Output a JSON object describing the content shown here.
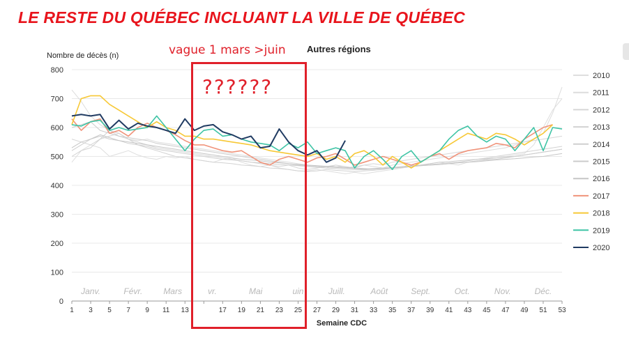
{
  "headline": "LE RESTE DU QUÉBEC INCLUANT LA VILLE DE QUÉBEC",
  "annotation": "vague 1 mars >juin",
  "question_marks": "??????",
  "chart_data": {
    "type": "line",
    "title": "Autres régions",
    "ylabel": "Nombre de décès (n)",
    "xlabel": "Semaine CDC",
    "ylim": [
      0,
      800
    ],
    "xlim": [
      1,
      53
    ],
    "yticks": [
      0,
      100,
      200,
      300,
      400,
      500,
      600,
      700,
      800
    ],
    "xticks": [
      1,
      3,
      5,
      7,
      9,
      11,
      13,
      15,
      17,
      19,
      21,
      23,
      25,
      27,
      29,
      31,
      33,
      35,
      37,
      39,
      41,
      43,
      45,
      47,
      49,
      51,
      53
    ],
    "xtick_labels": [
      "1",
      "3",
      "5",
      "7",
      "9",
      "11",
      "13",
      "",
      "17",
      "19",
      "21",
      "23",
      "25",
      "27",
      "29",
      "31",
      "33",
      "35",
      "37",
      "39",
      "41",
      "43",
      "45",
      "47",
      "49",
      "51",
      "53"
    ],
    "months": [
      {
        "label": "Janv.",
        "week": 3
      },
      {
        "label": "Févr.",
        "week": 7.5
      },
      {
        "label": "Mars",
        "week": 11.7
      },
      {
        "label": "vr.",
        "week": 15.9
      },
      {
        "label": "Mai",
        "week": 20.5
      },
      {
        "label": "uin",
        "week": 25
      },
      {
        "label": "Juill.",
        "week": 29.1
      },
      {
        "label": "Août",
        "week": 33.6
      },
      {
        "label": "Sept.",
        "week": 38
      },
      {
        "label": "Oct.",
        "week": 42.4
      },
      {
        "label": "Nov.",
        "week": 46.7
      },
      {
        "label": "Déc.",
        "week": 51
      }
    ],
    "grid": true,
    "legend_position": "right",
    "series": [
      {
        "name": "2010",
        "color": "#dedede",
        "values": [
          480,
          520,
          540,
          530,
          500,
          510,
          520,
          505,
          495,
          490,
          500,
          495,
          500,
          490,
          485,
          480,
          490,
          495,
          480,
          470,
          465,
          470,
          460,
          455,
          450,
          450,
          455,
          450,
          445,
          440,
          445,
          440,
          445,
          450,
          455,
          460,
          465,
          470,
          475,
          480,
          475,
          470,
          480,
          485,
          490,
          495,
          500,
          505,
          510,
          540,
          600,
          660,
          700
        ]
      },
      {
        "name": "2011",
        "color": "#dcdcdc",
        "values": [
          730,
          690,
          640,
          610,
          590,
          570,
          560,
          555,
          560,
          550,
          545,
          540,
          535,
          530,
          525,
          520,
          515,
          510,
          505,
          500,
          495,
          490,
          485,
          480,
          475,
          470,
          465,
          460,
          470,
          460,
          465,
          470,
          465,
          460,
          470,
          475,
          480,
          485,
          490,
          495,
          500,
          505,
          510,
          515,
          520,
          525,
          530,
          540,
          550,
          560,
          580,
          650,
          740
        ]
      },
      {
        "name": "2012",
        "color": "#d6d6d6",
        "values": [
          560,
          550,
          540,
          560,
          570,
          580,
          560,
          550,
          540,
          530,
          525,
          520,
          515,
          510,
          505,
          500,
          495,
          490,
          485,
          480,
          475,
          470,
          465,
          470,
          460,
          455,
          460,
          465,
          470,
          465,
          460,
          470,
          475,
          470,
          480,
          485,
          490,
          495,
          500,
          505,
          510,
          515,
          520,
          525,
          530,
          535,
          540,
          545,
          550,
          555,
          560,
          565,
          570
        ]
      },
      {
        "name": "2013",
        "color": "#d2d2d2",
        "values": [
          500,
          520,
          530,
          560,
          590,
          580,
          560,
          540,
          530,
          520,
          510,
          500,
          495,
          490,
          485,
          480,
          478,
          475,
          470,
          468,
          465,
          460,
          458,
          455,
          450,
          448,
          450,
          455,
          452,
          450,
          448,
          450,
          452,
          455,
          460,
          462,
          465,
          470,
          472,
          475,
          478,
          480,
          485,
          490,
          495,
          500,
          505,
          510,
          515,
          520,
          525,
          530,
          535
        ]
      },
      {
        "name": "2014",
        "color": "#cfcfcf",
        "values": [
          520,
          540,
          560,
          570,
          560,
          555,
          545,
          540,
          535,
          525,
          520,
          515,
          510,
          505,
          500,
          495,
          490,
          488,
          485,
          480,
          478,
          475,
          472,
          470,
          468,
          465,
          462,
          460,
          458,
          456,
          455,
          454,
          456,
          458,
          460,
          462,
          465,
          468,
          470,
          472,
          475,
          478,
          480,
          485,
          488,
          490,
          495,
          500,
          505,
          510,
          515,
          520,
          525
        ]
      },
      {
        "name": "2015",
        "color": "#cbcbcb",
        "values": [
          600,
          610,
          620,
          590,
          580,
          570,
          565,
          560,
          555,
          545,
          540,
          535,
          530,
          525,
          520,
          515,
          510,
          505,
          500,
          495,
          490,
          485,
          480,
          475,
          470,
          468,
          466,
          464,
          462,
          460,
          458,
          456,
          458,
          460,
          462,
          465,
          468,
          470,
          475,
          480,
          482,
          485,
          488,
          490,
          492,
          495,
          498,
          500,
          505,
          510,
          515,
          520,
          525
        ]
      },
      {
        "name": "2016",
        "color": "#c6c6c6",
        "values": [
          530,
          550,
          560,
          575,
          565,
          555,
          550,
          545,
          540,
          535,
          530,
          525,
          520,
          515,
          510,
          505,
          500,
          495,
          490,
          488,
          485,
          480,
          478,
          475,
          472,
          470,
          468,
          466,
          464,
          462,
          460,
          458,
          456,
          458,
          460,
          462,
          465,
          468,
          470,
          472,
          475,
          478,
          480,
          482,
          485,
          488,
          490,
          492,
          495,
          498,
          500,
          505,
          510
        ]
      },
      {
        "name": "2017",
        "color": "#f0937a",
        "values": [
          630,
          590,
          620,
          630,
          580,
          590,
          570,
          600,
          615,
          600,
          590,
          575,
          555,
          540,
          540,
          530,
          520,
          515,
          520,
          500,
          480,
          470,
          490,
          500,
          490,
          480,
          495,
          500,
          510,
          490,
          470,
          480,
          490,
          500,
          490,
          480,
          470,
          480,
          500,
          510,
          490,
          510,
          520,
          525,
          530,
          545,
          540,
          530,
          560,
          580,
          600,
          610
        ]
      },
      {
        "name": "2018",
        "color": "#f7c836",
        "values": [
          610,
          700,
          710,
          710,
          680,
          660,
          640,
          620,
          600,
          620,
          600,
          590,
          570,
          570,
          560,
          560,
          555,
          550,
          545,
          540,
          530,
          520,
          515,
          510,
          505,
          500,
          510,
          490,
          500,
          480,
          510,
          520,
          500,
          470,
          500,
          480,
          460,
          480,
          500,
          520,
          540,
          560,
          580,
          570,
          560,
          580,
          575,
          560,
          540,
          560,
          580,
          610
        ]
      },
      {
        "name": "2019",
        "color": "#3ec4a5",
        "values": [
          610,
          605,
          620,
          625,
          590,
          600,
          590,
          595,
          600,
          640,
          600,
          560,
          520,
          560,
          590,
          595,
          570,
          575,
          560,
          550,
          545,
          540,
          520,
          545,
          530,
          550,
          510,
          520,
          530,
          520,
          460,
          500,
          520,
          490,
          455,
          500,
          520,
          480,
          500,
          520,
          560,
          590,
          605,
          570,
          550,
          570,
          560,
          520,
          560,
          600,
          520,
          600,
          595
        ]
      },
      {
        "name": "2020",
        "color": "#203b62",
        "values": [
          640,
          645,
          640,
          645,
          595,
          625,
          595,
          615,
          605,
          600,
          590,
          580,
          630,
          590,
          605,
          610,
          585,
          575,
          560,
          570,
          530,
          535,
          595,
          550,
          520,
          505,
          520,
          480,
          495,
          555
        ]
      }
    ]
  }
}
